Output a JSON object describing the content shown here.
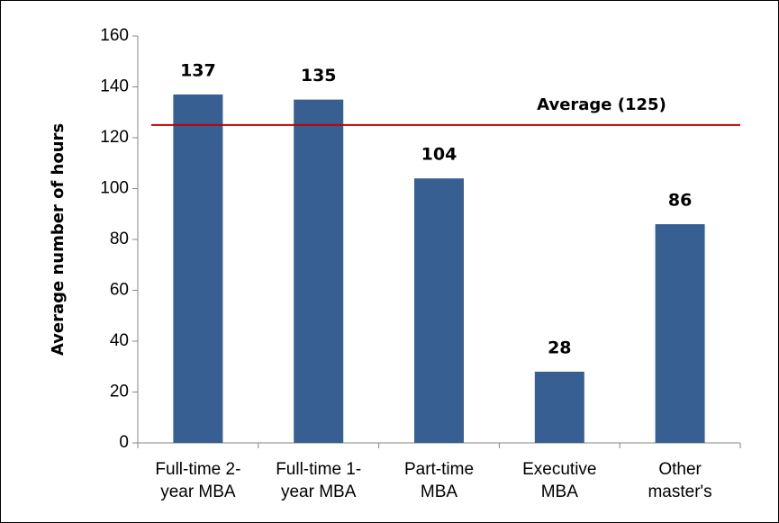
{
  "chart_data": {
    "type": "bar",
    "y_label": "Average number of hours",
    "categories": [
      [
        "Full-time 2-",
        "year MBA"
      ],
      [
        "Full-time 1-",
        "year MBA"
      ],
      [
        "Part-time",
        "MBA"
      ],
      [
        "Executive",
        "MBA"
      ],
      [
        "Other",
        "master's"
      ]
    ],
    "values": [
      137,
      135,
      104,
      28,
      86
    ],
    "color": "#375f91",
    "ylim": [
      0,
      160
    ],
    "yticks": [
      0,
      20,
      40,
      60,
      80,
      100,
      120,
      140,
      160
    ],
    "reference_line": {
      "value": 125,
      "label": "Average (125)",
      "color": "#c00000"
    }
  }
}
